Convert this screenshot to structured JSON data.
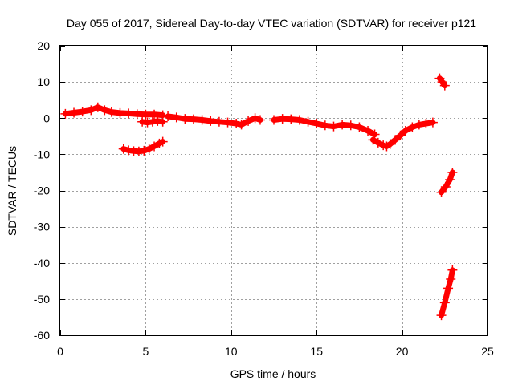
{
  "chart_data": {
    "type": "scatter",
    "title": "Day 055 of 2017, Sidereal Day-to-day VTEC variation (SDTVAR) for receiver p121",
    "xlabel": "GPS time / hours",
    "ylabel": "SDTVAR / TECUs",
    "xlim": [
      0,
      25
    ],
    "ylim": [
      -60,
      20
    ],
    "x_ticks": [
      0,
      5,
      10,
      15,
      20,
      25
    ],
    "y_ticks": [
      -60,
      -50,
      -40,
      -30,
      -20,
      -10,
      0,
      10,
      20
    ],
    "grid": true,
    "marker": "plus",
    "series_color": "#ff0000",
    "series": [
      {
        "name": "arc-1",
        "x": [
          0.3,
          0.8,
          1.3,
          1.8,
          2.2,
          2.6,
          3.0,
          3.5,
          4.0,
          4.5,
          5.0,
          5.5,
          6.0
        ],
        "y": [
          1.2,
          1.5,
          1.8,
          2.2,
          3.0,
          2.2,
          1.7,
          1.4,
          1.3,
          1.1,
          1.0,
          1.0,
          0.8
        ]
      },
      {
        "name": "arc-1-lower",
        "x": [
          4.8,
          5.1,
          5.4,
          5.7,
          6.0
        ],
        "y": [
          -1.0,
          -1.2,
          -1.0,
          -0.8,
          -1.0
        ]
      },
      {
        "name": "arc-2",
        "x": [
          3.7,
          4.0,
          4.3,
          4.6,
          4.9,
          5.2,
          5.5,
          5.8,
          6.0
        ],
        "y": [
          -8.5,
          -8.9,
          -9.1,
          -9.2,
          -9.0,
          -8.5,
          -7.8,
          -7.0,
          -6.5
        ]
      },
      {
        "name": "arc-3",
        "x": [
          6.3,
          6.8,
          7.3,
          7.8,
          8.3,
          8.8,
          9.3,
          9.8,
          10.3,
          10.6,
          11.0,
          11.4,
          11.7
        ],
        "y": [
          0.5,
          0.2,
          -0.2,
          -0.3,
          -0.5,
          -0.8,
          -1.0,
          -1.2,
          -1.5,
          -1.8,
          -0.8,
          0.0,
          -0.5
        ]
      },
      {
        "name": "arc-4",
        "x": [
          12.5,
          13.0,
          13.5,
          14.0,
          14.5,
          15.0,
          15.5,
          16.0,
          16.5,
          17.0,
          17.5,
          18.0,
          18.4
        ],
        "y": [
          -0.5,
          -0.2,
          -0.3,
          -0.5,
          -1.0,
          -1.5,
          -2.0,
          -2.3,
          -1.8,
          -2.0,
          -2.5,
          -3.5,
          -4.5
        ]
      },
      {
        "name": "arc-5",
        "x": [
          18.3,
          18.6,
          18.9,
          19.1,
          19.3,
          19.6,
          19.9,
          20.2,
          20.6,
          21.0,
          21.4,
          21.8
        ],
        "y": [
          -6.0,
          -6.8,
          -7.5,
          -7.8,
          -7.2,
          -6.0,
          -4.8,
          -3.5,
          -2.5,
          -1.8,
          -1.5,
          -1.2
        ]
      },
      {
        "name": "arc-6",
        "x": [
          22.2,
          22.35,
          22.5
        ],
        "y": [
          11.0,
          10.0,
          9.0
        ]
      },
      {
        "name": "arc-7",
        "x": [
          22.3,
          22.55,
          22.8,
          22.95
        ],
        "y": [
          -20.5,
          -19.0,
          -17.0,
          -15.0
        ]
      },
      {
        "name": "arc-8",
        "x": [
          22.3,
          22.5,
          22.7,
          22.85,
          22.95
        ],
        "y": [
          -54.5,
          -51.0,
          -47.0,
          -44.5,
          -42.0
        ]
      }
    ]
  }
}
